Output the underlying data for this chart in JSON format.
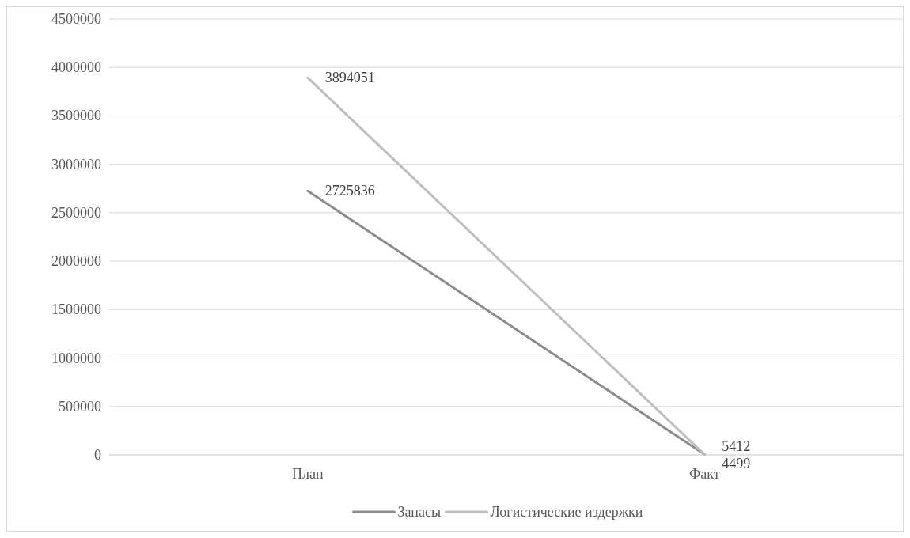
{
  "chart_data": {
    "type": "line",
    "categories": [
      "План",
      "Факт"
    ],
    "series": [
      {
        "name": "Запасы",
        "color": "#8c8c8c",
        "values": [
          2725836,
          5412
        ]
      },
      {
        "name": "Логистические издержки",
        "color": "#bfbfbf",
        "values": [
          3894051,
          4499
        ]
      }
    ],
    "ylim": [
      0,
      4500000
    ],
    "yticks": [
      0,
      500000,
      1000000,
      1500000,
      2000000,
      2500000,
      3000000,
      3500000,
      4000000,
      4500000
    ],
    "grid": "y",
    "legend": "bottom",
    "data_labels": true,
    "marker": "none",
    "line_style": "solid"
  }
}
